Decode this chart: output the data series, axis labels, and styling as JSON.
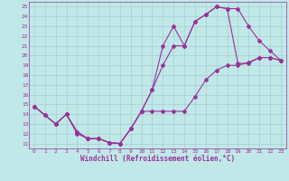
{
  "xlabel": "Windchill (Refroidissement éolien,°C)",
  "xlim": [
    -0.5,
    23.5
  ],
  "ylim": [
    10.5,
    25.5
  ],
  "xticks": [
    0,
    1,
    2,
    3,
    4,
    5,
    6,
    7,
    8,
    9,
    10,
    11,
    12,
    13,
    14,
    15,
    16,
    17,
    18,
    19,
    20,
    21,
    22,
    23
  ],
  "yticks": [
    11,
    12,
    13,
    14,
    15,
    16,
    17,
    18,
    19,
    20,
    21,
    22,
    23,
    24,
    25
  ],
  "bg_color": "#c0e8e8",
  "grid_color": "#a0c8c8",
  "line_color": "#993399",
  "curve1_x": [
    0,
    1,
    2,
    3,
    4,
    5,
    6,
    7,
    8,
    9,
    10,
    11,
    12,
    13,
    14,
    15,
    16,
    17,
    18,
    19,
    20,
    21,
    22,
    23
  ],
  "curve1_y": [
    14.8,
    13.9,
    13.0,
    14.0,
    12.0,
    11.5,
    11.5,
    11.1,
    11.0,
    12.5,
    14.3,
    16.5,
    21.0,
    23.0,
    21.0,
    23.5,
    24.2,
    25.0,
    24.8,
    24.8,
    23.0,
    21.5,
    20.5,
    19.5
  ],
  "curve2_x": [
    0,
    1,
    2,
    3,
    4,
    5,
    6,
    7,
    8,
    9,
    10,
    11,
    12,
    13,
    14,
    15,
    16,
    17,
    18,
    19,
    20,
    21,
    22,
    23
  ],
  "curve2_y": [
    14.8,
    13.9,
    13.0,
    14.0,
    12.2,
    11.5,
    11.5,
    11.1,
    11.0,
    12.5,
    14.3,
    14.3,
    14.3,
    14.3,
    14.3,
    15.8,
    17.5,
    18.5,
    19.0,
    19.0,
    19.3,
    19.8,
    19.8,
    19.5
  ],
  "curve3_x": [
    0,
    1,
    2,
    3,
    4,
    5,
    6,
    7,
    8,
    9,
    10,
    11,
    12,
    13,
    14,
    15,
    16,
    17,
    18,
    19,
    20,
    21,
    22,
    23
  ],
  "curve3_y": [
    14.8,
    13.9,
    13.0,
    14.0,
    12.2,
    11.5,
    11.5,
    11.1,
    11.0,
    12.5,
    14.3,
    16.5,
    19.0,
    21.0,
    21.0,
    23.5,
    24.2,
    25.0,
    24.8,
    19.2,
    19.2,
    19.8,
    19.8,
    19.5
  ],
  "marker": "D",
  "markersize": 2.0,
  "linewidth": 0.8,
  "tick_fontsize": 4.5,
  "label_fontsize": 5.5
}
